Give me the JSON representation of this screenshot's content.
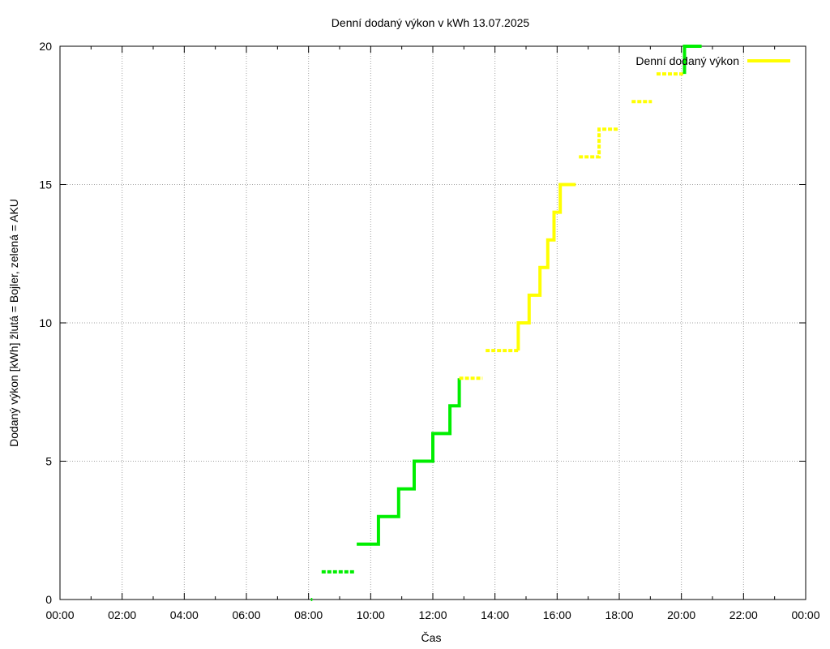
{
  "chart_data": {
    "type": "line",
    "title": "Denní dodaný výkon v kWh 13.07.2025",
    "xlabel": "Čas",
    "ylabel": "Dodaný výkon [kWh]  žlutá = Bojler, zelená = AKU",
    "xlim": [
      0,
      24
    ],
    "ylim": [
      0,
      20
    ],
    "x_ticks": [
      {
        "value": 0,
        "label": "00:00"
      },
      {
        "value": 2,
        "label": "02:00"
      },
      {
        "value": 4,
        "label": "04:00"
      },
      {
        "value": 6,
        "label": "06:00"
      },
      {
        "value": 8,
        "label": "08:00"
      },
      {
        "value": 10,
        "label": "10:00"
      },
      {
        "value": 12,
        "label": "12:00"
      },
      {
        "value": 14,
        "label": "14:00"
      },
      {
        "value": 16,
        "label": "16:00"
      },
      {
        "value": 18,
        "label": "18:00"
      },
      {
        "value": 20,
        "label": "20:00"
      },
      {
        "value": 22,
        "label": "22:00"
      },
      {
        "value": 24,
        "label": "00:00"
      }
    ],
    "y_ticks": [
      {
        "value": 0,
        "label": "0"
      },
      {
        "value": 5,
        "label": "5"
      },
      {
        "value": 10,
        "label": "10"
      },
      {
        "value": 15,
        "label": "15"
      },
      {
        "value": 20,
        "label": "20"
      }
    ],
    "grid": true,
    "legend": {
      "position": "top-right",
      "entries": [
        {
          "label": "Denní dodaný výkon",
          "color": "#ffff00"
        }
      ]
    },
    "series": [
      {
        "name": "Denní dodaný výkon",
        "segments": [
          {
            "color": "#00ee00",
            "style": "dashed",
            "points": [
              [
                8.08,
                0
              ],
              [
                8.12,
                0
              ]
            ]
          },
          {
            "color": "#00ee00",
            "style": "dashed",
            "points": [
              [
                8.42,
                1
              ],
              [
                9.5,
                1
              ]
            ]
          },
          {
            "color": "#00ee00",
            "style": "solid",
            "points": [
              [
                9.55,
                2
              ],
              [
                10.25,
                2
              ],
              [
                10.25,
                3
              ],
              [
                10.9,
                3
              ],
              [
                10.9,
                4
              ],
              [
                11.4,
                4
              ],
              [
                11.4,
                5
              ],
              [
                12.0,
                5
              ],
              [
                12.0,
                6
              ],
              [
                12.55,
                6
              ],
              [
                12.55,
                7
              ],
              [
                12.85,
                7
              ],
              [
                12.85,
                8
              ]
            ]
          },
          {
            "color": "#ffff00",
            "style": "dashed",
            "points": [
              [
                12.85,
                8
              ],
              [
                13.6,
                8
              ]
            ]
          },
          {
            "color": "#ffff00",
            "style": "dashed",
            "points": [
              [
                13.7,
                9
              ],
              [
                14.75,
                9
              ]
            ]
          },
          {
            "color": "#ffff00",
            "style": "solid",
            "points": [
              [
                14.75,
                9
              ],
              [
                14.75,
                10
              ],
              [
                15.1,
                10
              ],
              [
                15.1,
                11
              ],
              [
                15.45,
                11
              ],
              [
                15.45,
                12
              ],
              [
                15.7,
                12
              ],
              [
                15.7,
                13
              ],
              [
                15.9,
                13
              ],
              [
                15.9,
                14
              ],
              [
                16.1,
                14
              ],
              [
                16.1,
                15
              ],
              [
                16.6,
                15
              ]
            ]
          },
          {
            "color": "#ffff00",
            "style": "dashed",
            "points": [
              [
                16.7,
                16
              ],
              [
                17.35,
                16
              ],
              [
                17.35,
                17
              ],
              [
                18.0,
                17
              ]
            ]
          },
          {
            "color": "#ffff00",
            "style": "dashed",
            "points": [
              [
                18.4,
                18
              ],
              [
                19.05,
                18
              ]
            ]
          },
          {
            "color": "#ffff00",
            "style": "dashed",
            "points": [
              [
                19.2,
                19
              ],
              [
                20.1,
                19
              ]
            ]
          },
          {
            "color": "#00ee00",
            "style": "solid",
            "points": [
              [
                20.1,
                19
              ],
              [
                20.1,
                20
              ],
              [
                20.65,
                20
              ]
            ]
          }
        ]
      }
    ]
  }
}
